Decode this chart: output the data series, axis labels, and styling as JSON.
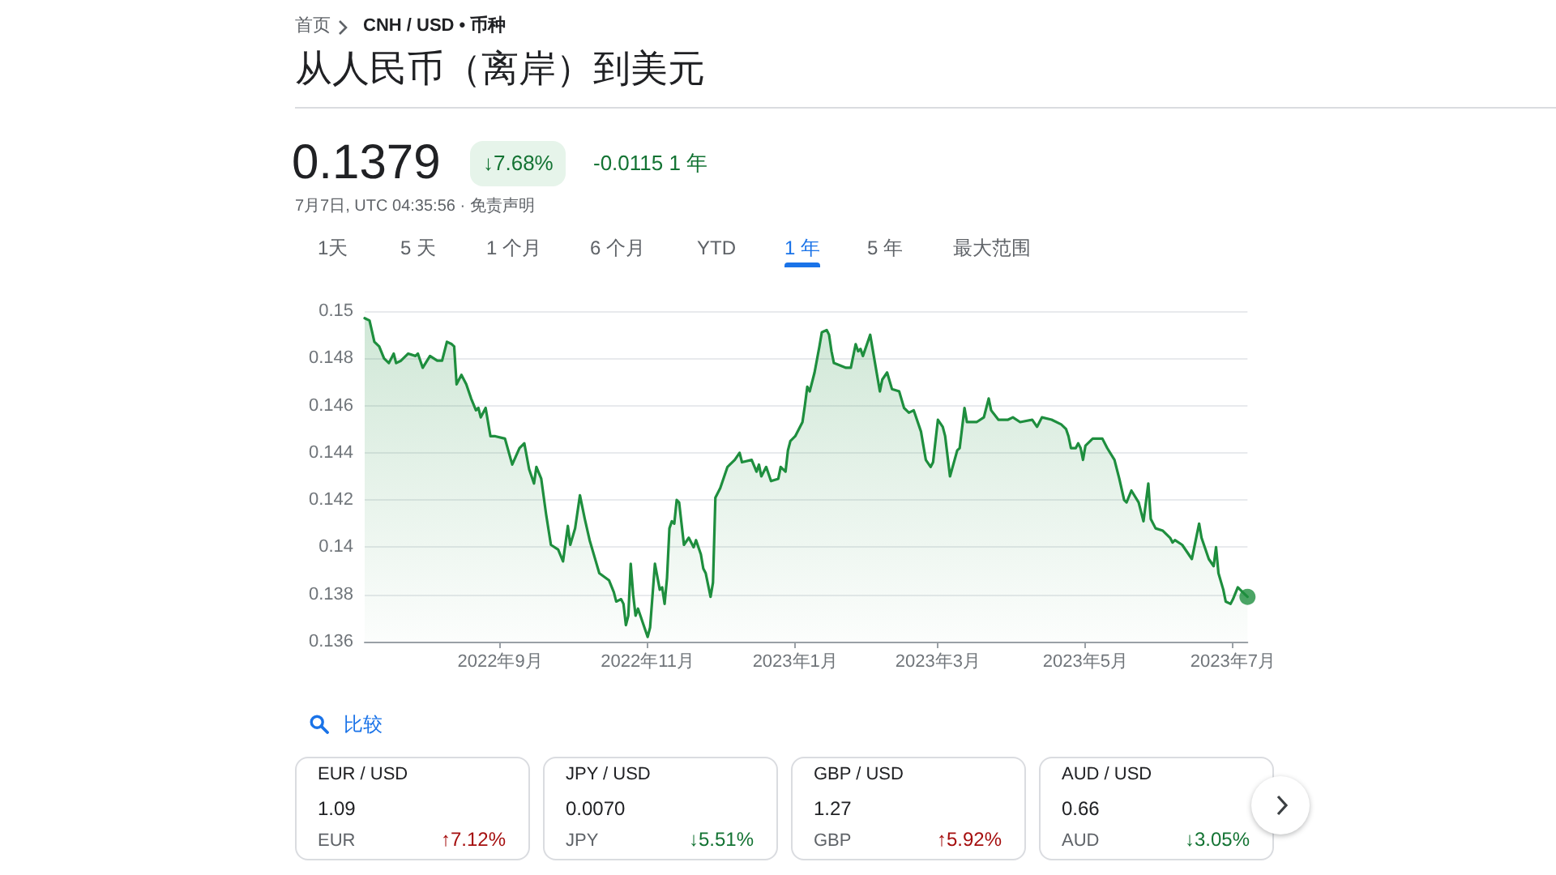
{
  "chart_data": {
    "type": "area",
    "title": "从人民币（离岸）到美元",
    "annotations": [
      "首页",
      "CNH / USD • 币种",
      "0.1379",
      "↓7.68%",
      "-0.0115 1 年",
      "7月7日, UTC 04:35:56 · 免责声明",
      "1天",
      "5 天",
      "1 个月",
      "6 个月",
      "YTD",
      "1 年",
      "5 年",
      "最大范围",
      "比较",
      "EUR / USD",
      "1.09",
      "EUR",
      "↑7.12%",
      "JPY / USD",
      "0.0070",
      "JPY",
      "↓5.51%",
      "GBP / USD",
      "1.27",
      "GBP",
      "↑5.92%",
      "AUD / USD",
      "0.66",
      "AUD",
      "↓3.05%"
    ],
    "x": [
      "2022-07-07",
      "2022-07-09",
      "2022-07-11",
      "2022-07-13",
      "2022-07-15",
      "2022-07-17",
      "2022-07-19",
      "2022-07-20",
      "2022-07-22",
      "2022-07-25",
      "2022-07-28",
      "2022-07-29",
      "2022-07-31",
      "2022-08-03",
      "2022-08-06",
      "2022-08-08",
      "2022-08-10",
      "2022-08-12",
      "2022-08-13",
      "2022-08-14",
      "2022-08-16",
      "2022-08-18",
      "2022-08-20",
      "2022-08-22",
      "2022-08-23",
      "2022-08-24",
      "2022-08-26",
      "2022-08-28",
      "2022-08-30",
      "2022-09-03",
      "2022-09-06",
      "2022-09-09",
      "2022-09-11",
      "2022-09-13",
      "2022-09-15",
      "2022-09-16",
      "2022-09-18",
      "2022-09-20",
      "2022-09-22",
      "2022-09-25",
      "2022-09-27",
      "2022-09-29",
      "2022-09-30",
      "2022-10-02",
      "2022-10-04",
      "2022-10-06",
      "2022-10-08",
      "2022-10-10",
      "2022-10-12",
      "2022-10-16",
      "2022-10-18",
      "2022-10-19",
      "2022-10-21",
      "2022-10-22",
      "2022-10-23",
      "2022-10-24",
      "2022-10-25",
      "2022-10-26",
      "2022-10-27",
      "2022-10-28",
      "2022-10-30",
      "2022-11-01",
      "2022-11-02",
      "2022-11-04",
      "2022-11-06",
      "2022-11-07",
      "2022-11-08",
      "2022-11-09",
      "2022-11-10",
      "2022-11-11",
      "2022-11-12",
      "2022-11-13",
      "2022-11-14",
      "2022-11-15",
      "2022-11-16",
      "2022-11-18",
      "2022-11-20",
      "2022-11-21",
      "2022-11-23",
      "2022-11-24",
      "2022-11-25",
      "2022-11-27",
      "2022-11-28",
      "2022-11-29",
      "2022-12-01",
      "2022-12-04",
      "2022-12-05",
      "2022-12-07",
      "2022-12-09",
      "2022-12-10",
      "2022-12-14",
      "2022-12-16",
      "2022-12-17",
      "2022-12-18",
      "2022-12-20",
      "2022-12-22",
      "2022-12-25",
      "2022-12-26",
      "2022-12-28",
      "2022-12-29",
      "2022-12-30",
      "2023-01-01",
      "2023-01-04",
      "2023-01-05",
      "2023-01-06",
      "2023-01-07",
      "2023-01-09",
      "2023-01-11",
      "2023-01-12",
      "2023-01-14",
      "2023-01-15",
      "2023-01-16",
      "2023-01-17",
      "2023-01-22",
      "2023-01-24",
      "2023-01-26",
      "2023-01-27",
      "2023-01-28",
      "2023-01-29",
      "2023-02-01",
      "2023-02-03",
      "2023-02-05",
      "2023-02-06",
      "2023-02-08",
      "2023-02-10",
      "2023-02-13",
      "2023-02-15",
      "2023-02-17",
      "2023-02-19",
      "2023-02-22",
      "2023-02-24",
      "2023-02-26",
      "2023-02-27",
      "2023-03-01",
      "2023-03-03",
      "2023-03-04",
      "2023-03-06",
      "2023-03-09",
      "2023-03-10",
      "2023-03-12",
      "2023-03-13",
      "2023-03-17",
      "2023-03-20",
      "2023-03-22",
      "2023-03-23",
      "2023-03-26",
      "2023-03-30",
      "2023-04-01",
      "2023-04-04",
      "2023-04-09",
      "2023-04-11",
      "2023-04-13",
      "2023-04-17",
      "2023-04-21",
      "2023-04-23",
      "2023-04-24",
      "2023-04-25",
      "2023-04-27",
      "2023-04-28",
      "2023-04-29",
      "2023-04-30",
      "2023-05-01",
      "2023-05-04",
      "2023-05-08",
      "2023-05-10",
      "2023-05-13",
      "2023-05-15",
      "2023-05-17",
      "2023-05-18",
      "2023-05-20",
      "2023-05-23",
      "2023-05-25",
      "2023-05-27",
      "2023-05-28",
      "2023-05-30",
      "2023-06-02",
      "2023-06-05",
      "2023-06-06",
      "2023-06-07",
      "2023-06-10",
      "2023-06-12",
      "2023-06-14",
      "2023-06-16",
      "2023-06-17",
      "2023-06-18",
      "2023-06-21",
      "2023-06-23",
      "2023-06-24",
      "2023-06-25",
      "2023-06-27",
      "2023-06-28",
      "2023-06-30",
      "2023-07-01",
      "2023-07-03",
      "2023-07-05",
      "2023-07-07"
    ],
    "series": [
      {
        "color": "#1e8e3e",
        "values": [
          0.1497,
          0.1496,
          0.1487,
          0.1485,
          0.148,
          0.1478,
          0.1482,
          0.1478,
          0.1479,
          0.1482,
          0.1481,
          0.1482,
          0.1476,
          0.1481,
          0.1479,
          0.1479,
          0.1487,
          0.1486,
          0.1485,
          0.1469,
          0.1473,
          0.1469,
          0.1463,
          0.1458,
          0.1459,
          0.1455,
          0.1459,
          0.1447,
          0.1447,
          0.1446,
          0.1435,
          0.1442,
          0.1444,
          0.1433,
          0.1427,
          0.1434,
          0.1429,
          0.1414,
          0.1401,
          0.1399,
          0.1394,
          0.1409,
          0.1401,
          0.1408,
          0.1422,
          0.1412,
          0.1403,
          0.1396,
          0.1389,
          0.1386,
          0.1381,
          0.1377,
          0.1378,
          0.1376,
          0.1367,
          0.1371,
          0.1393,
          0.138,
          0.1371,
          0.1374,
          0.1368,
          0.1362,
          0.1366,
          0.1393,
          0.1382,
          0.1383,
          0.1376,
          0.1387,
          0.1408,
          0.1411,
          0.141,
          0.142,
          0.1419,
          0.141,
          0.1401,
          0.1404,
          0.14,
          0.1403,
          0.1397,
          0.1391,
          0.1389,
          0.1379,
          0.1385,
          0.1421,
          0.1425,
          0.1434,
          0.1435,
          0.1437,
          0.144,
          0.1436,
          0.1437,
          0.1432,
          0.1435,
          0.143,
          0.1434,
          0.1428,
          0.1429,
          0.1434,
          0.1432,
          0.1441,
          0.1445,
          0.1447,
          0.1453,
          0.146,
          0.1468,
          0.1466,
          0.1474,
          0.1485,
          0.1491,
          0.1492,
          0.149,
          0.1483,
          0.1478,
          0.1476,
          0.1476,
          0.1486,
          0.1483,
          0.1484,
          0.1481,
          0.149,
          0.1478,
          0.1466,
          0.1471,
          0.1474,
          0.1467,
          0.1466,
          0.1459,
          0.1457,
          0.1458,
          0.1449,
          0.1437,
          0.1434,
          0.1436,
          0.1454,
          0.1451,
          0.1447,
          0.143,
          0.1441,
          0.1442,
          0.1459,
          0.1453,
          0.1453,
          0.1455,
          0.1463,
          0.1458,
          0.1454,
          0.1454,
          0.1455,
          0.1453,
          0.1454,
          0.1451,
          0.1455,
          0.1454,
          0.1452,
          0.145,
          0.1447,
          0.1442,
          0.1442,
          0.1444,
          0.1442,
          0.1437,
          0.1443,
          0.1446,
          0.1446,
          0.1442,
          0.1437,
          0.1429,
          0.142,
          0.1419,
          0.1424,
          0.1419,
          0.1411,
          0.1427,
          0.1412,
          0.1408,
          0.1407,
          0.1404,
          0.1402,
          0.1403,
          0.1401,
          0.1398,
          0.1395,
          0.1405,
          0.141,
          0.1404,
          0.1395,
          0.1392,
          0.14,
          0.1389,
          0.1382,
          0.1377,
          0.1376,
          0.1378,
          0.1383,
          0.1381,
          0.1379
        ]
      },
      {
        "type": "scatter",
        "color": "#1e8e3e",
        "marker": "circle",
        "x": [
          "2023-07-07"
        ],
        "values": [
          0.1379
        ]
      }
    ],
    "xlim": [
      "2022-07-07",
      "2023-07-07"
    ],
    "xticks": [
      {
        "value": "2022-09-01",
        "label": "2022年9月"
      },
      {
        "value": "2022-11-01",
        "label": "2022年11月"
      },
      {
        "value": "2023-01-01",
        "label": "2023年1月"
      },
      {
        "value": "2023-03-01",
        "label": "2023年3月"
      },
      {
        "value": "2023-05-01",
        "label": "2023年5月"
      },
      {
        "value": "2023-07-01",
        "label": "2023年7月"
      }
    ],
    "ylim": [
      0.136,
      0.15
    ],
    "yticks": [
      0.136,
      0.138,
      0.14,
      0.142,
      0.144,
      0.146,
      0.148,
      0.15
    ],
    "grid": "y"
  }
}
